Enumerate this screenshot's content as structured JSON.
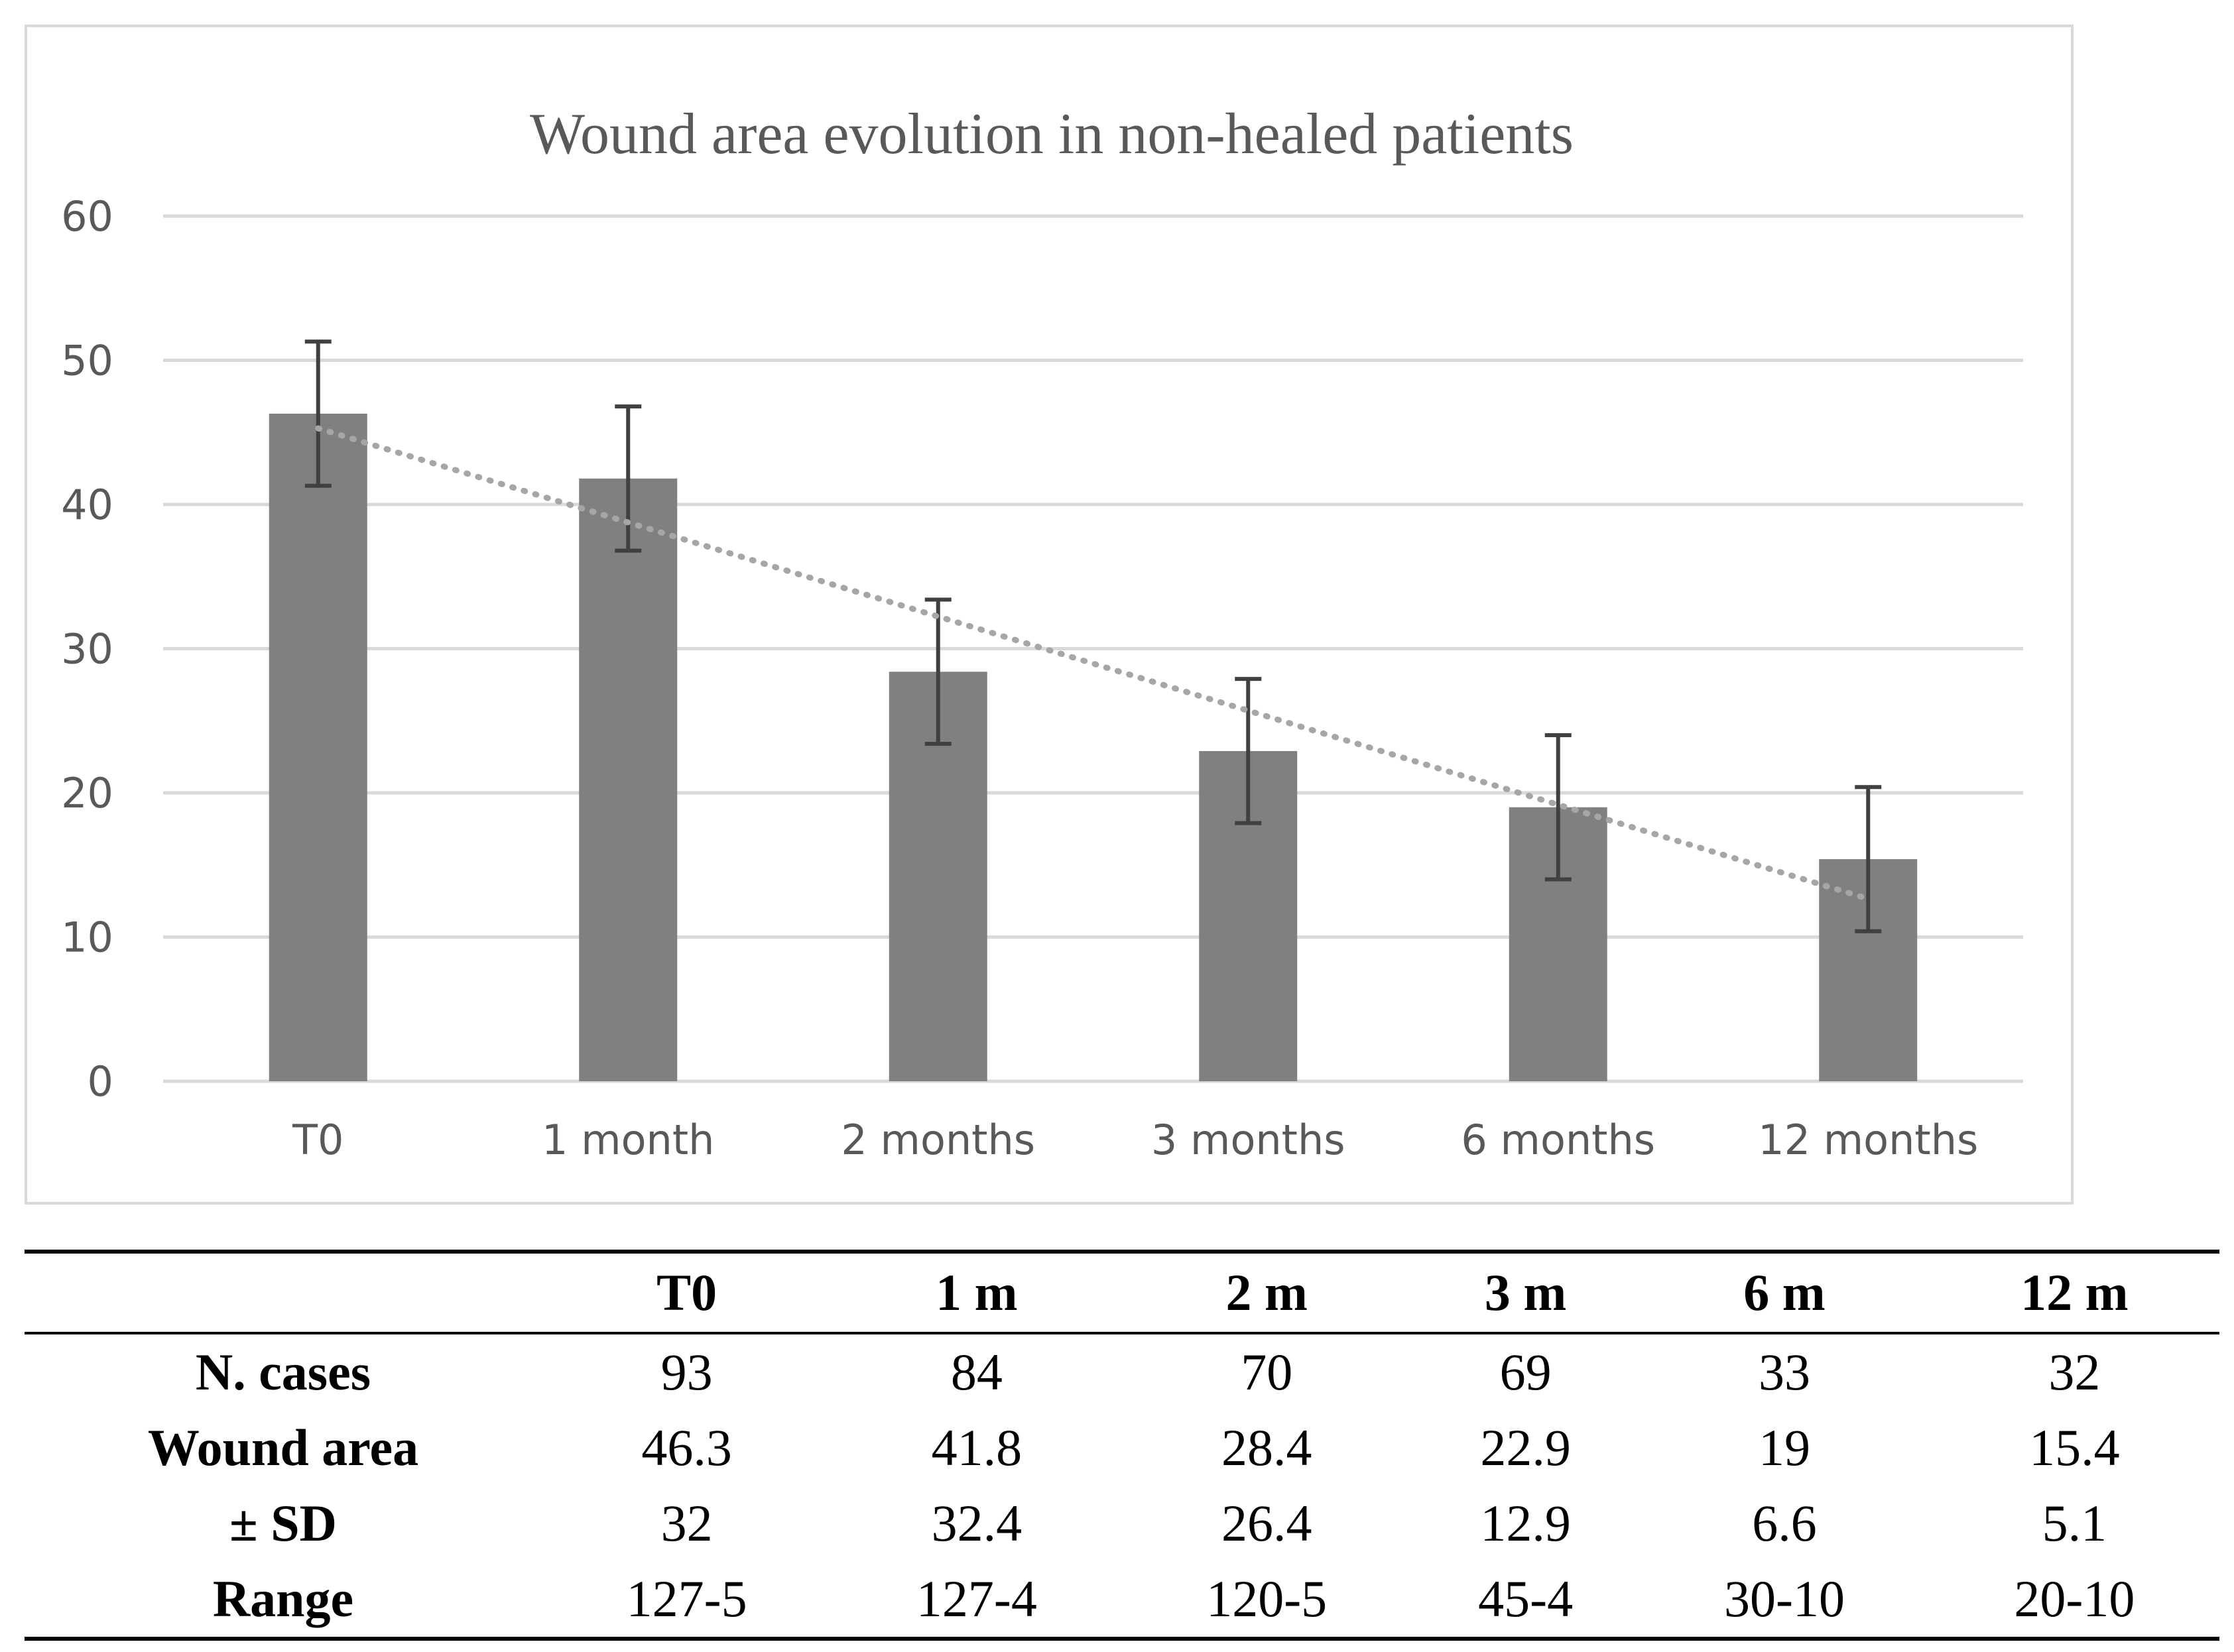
{
  "chart_data": {
    "type": "bar",
    "title": "Wound area evolution in non-healed patients",
    "categories": [
      "T0",
      "1 month",
      "2 months",
      "3 months",
      "6 months",
      "12 months"
    ],
    "values": [
      46.3,
      41.8,
      28.4,
      22.9,
      19,
      15.4
    ],
    "error_bars": [
      5,
      5,
      5,
      5,
      5,
      5
    ],
    "ylim": [
      0,
      60
    ],
    "yticks": [
      "0",
      "10",
      "20",
      "30",
      "40",
      "50",
      "60"
    ],
    "trendline": {
      "type": "linear",
      "style": "dotted"
    },
    "grid": true,
    "colors": {
      "bar": "#808080",
      "error": "#404040",
      "grid": "#d9d9d9",
      "trend": "#a6a6a6"
    }
  },
  "table": {
    "headers": [
      "",
      "T0",
      "1 m",
      "2 m",
      "3 m",
      "6 m",
      "12 m"
    ],
    "rows": [
      {
        "label": "N. cases",
        "values": [
          "93",
          "84",
          "70",
          "69",
          "33",
          "32"
        ]
      },
      {
        "label": "Wound area",
        "values": [
          "46.3",
          "41.8",
          "28.4",
          "22.9",
          "19",
          "15.4"
        ]
      },
      {
        "label": "± SD",
        "values": [
          "32",
          "32.4",
          "26.4",
          "12.9",
          "6.6",
          "5.1"
        ]
      },
      {
        "label": "Range",
        "values": [
          "127-5",
          "127-4",
          "120-5",
          "45-4",
          "30-10",
          "20-10"
        ]
      }
    ]
  }
}
